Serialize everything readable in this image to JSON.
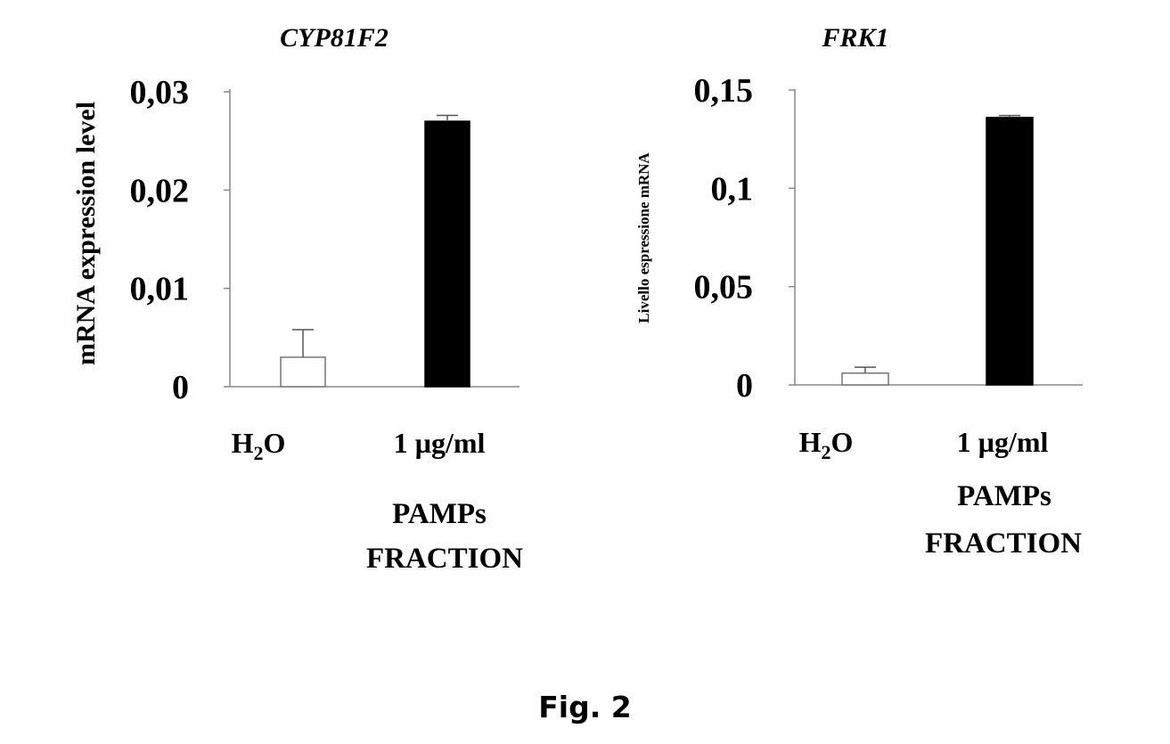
{
  "chart_data": [
    {
      "type": "bar",
      "title": "CYP81F2",
      "ylabel": "mRNA expression level",
      "xlabel": "",
      "categories": [
        "H2O",
        "1 µg/ml"
      ],
      "group_label": [
        "PAMPs",
        "FRACTION"
      ],
      "yticks": [
        "0",
        "0,01",
        "0,02",
        "0,03"
      ],
      "ylim": [
        0,
        0.03
      ],
      "series": [
        {
          "values": [
            0.003,
            0.027
          ],
          "errors": [
            0.0028,
            0.0006
          ],
          "fills": [
            "#ffffff",
            "#000000"
          ]
        }
      ],
      "grid": false,
      "legend": "none"
    },
    {
      "type": "bar",
      "title": "FRK1",
      "ylabel": "Livello espressione mRNA",
      "xlabel": "",
      "categories": [
        "H2O",
        "1 µg/ml"
      ],
      "group_label": [
        "PAMPs",
        "FRACTION"
      ],
      "yticks": [
        "0",
        "0,05",
        "0,1",
        "0,15"
      ],
      "ylim": [
        0,
        0.15
      ],
      "series": [
        {
          "values": [
            0.006,
            0.136
          ],
          "errors": [
            0.003,
            0.001
          ],
          "fills": [
            "#ffffff",
            "#000000"
          ]
        }
      ],
      "grid": false,
      "legend": "none"
    }
  ],
  "caption": "Fig. 2"
}
